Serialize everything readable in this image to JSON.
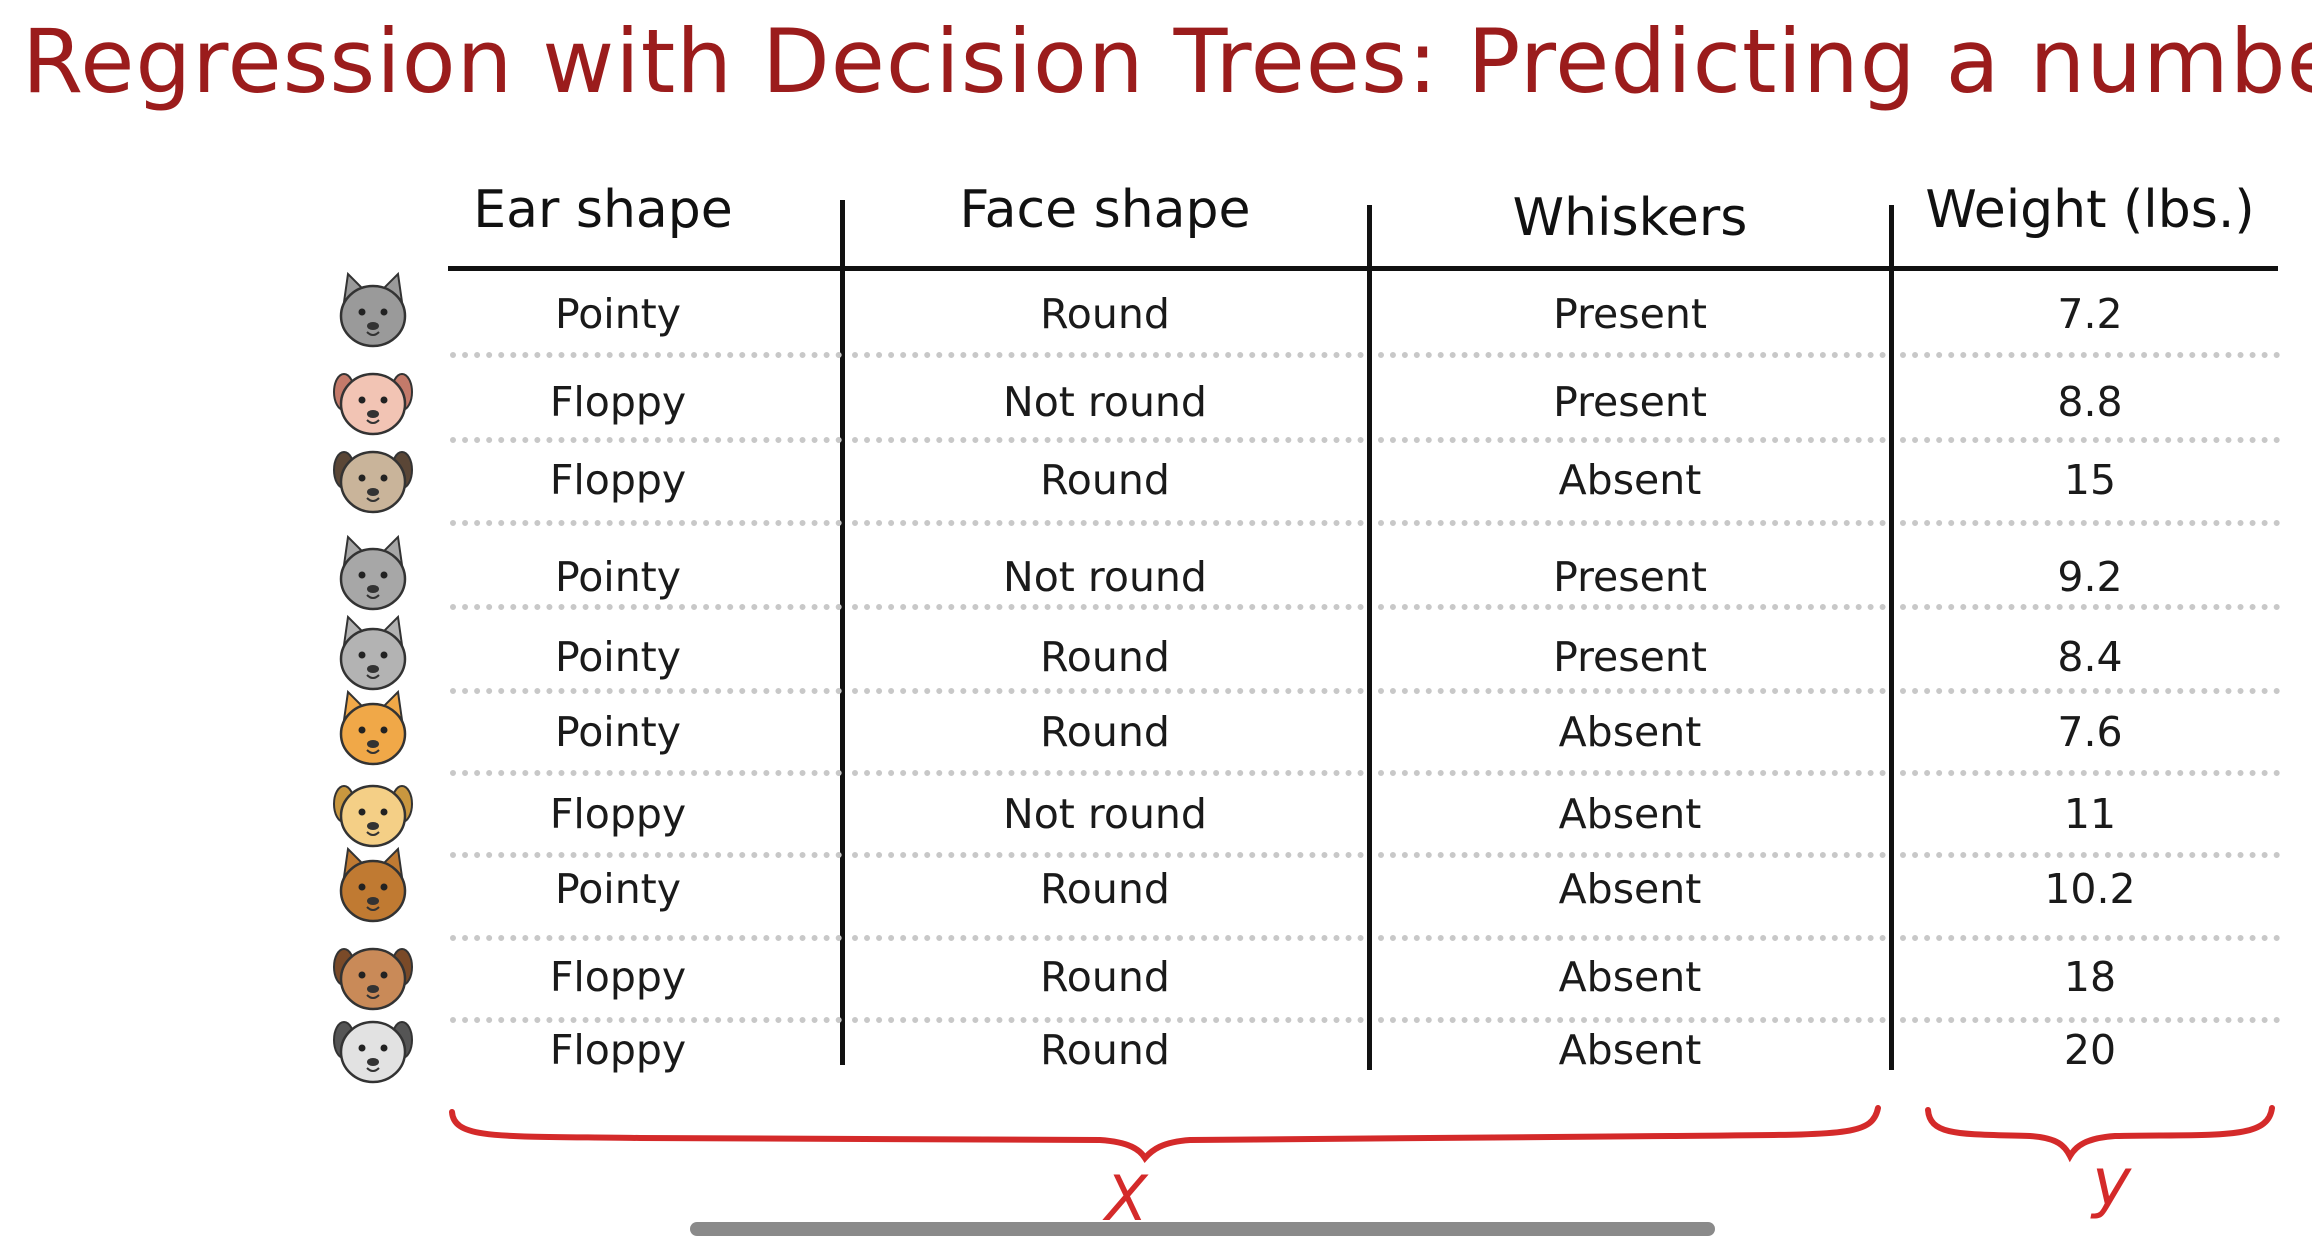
{
  "title": "Regression with Decision Trees: Predicting a numbe",
  "headers": [
    "Ear shape",
    "Face shape",
    "Whiskers",
    "Weight (lbs.)"
  ],
  "rows": [
    {
      "animal": "cat-gray-icon",
      "ear": "Pointy",
      "face": "Round",
      "whiskers": "Present",
      "weight": "7.2"
    },
    {
      "animal": "dog-pink-icon",
      "ear": "Floppy",
      "face": "Not round",
      "whiskers": "Present",
      "weight": "8.8"
    },
    {
      "animal": "dog-pug-icon",
      "ear": "Floppy",
      "face": "Round",
      "whiskers": "Absent",
      "weight": "15"
    },
    {
      "animal": "cat-husky-icon",
      "ear": "Pointy",
      "face": "Not round",
      "whiskers": "Present",
      "weight": "9.2"
    },
    {
      "animal": "cat-gray-small-icon",
      "ear": "Pointy",
      "face": "Round",
      "whiskers": "Present",
      "weight": "8.4"
    },
    {
      "animal": "cat-orange-icon",
      "ear": "Pointy",
      "face": "Round",
      "whiskers": "Absent",
      "weight": "7.6"
    },
    {
      "animal": "dog-yellow-icon",
      "ear": "Floppy",
      "face": "Not round",
      "whiskers": "Absent",
      "weight": "11"
    },
    {
      "animal": "cat-brown-icon",
      "ear": "Pointy",
      "face": "Round",
      "whiskers": "Absent",
      "weight": "10.2"
    },
    {
      "animal": "dog-brown-icon",
      "ear": "Floppy",
      "face": "Round",
      "whiskers": "Absent",
      "weight": "18"
    },
    {
      "animal": "dog-white-icon",
      "ear": "Floppy",
      "face": "Round",
      "whiskers": "Absent",
      "weight": "20"
    }
  ],
  "annotations": {
    "x_label": "X",
    "y_label": "y"
  },
  "colors": {
    "title": "#9b1c1c",
    "annotation": "#d42a2a"
  }
}
